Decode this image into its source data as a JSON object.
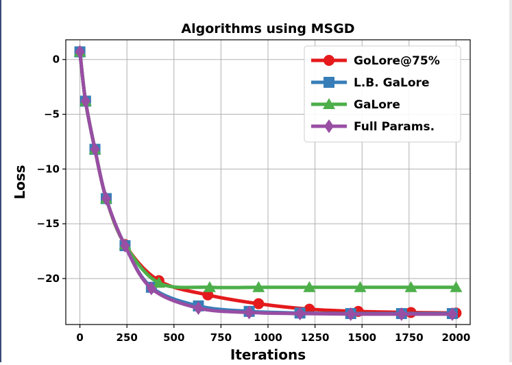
{
  "chart_data": {
    "type": "line",
    "title": "Algorithms using MSGD",
    "xlabel": "Iterations",
    "ylabel": "Loss",
    "xlim": [
      -75,
      2075
    ],
    "ylim": [
      -24.2,
      1.8
    ],
    "xticks": [
      0,
      250,
      500,
      750,
      1000,
      1250,
      1500,
      1750,
      2000
    ],
    "yticks": [
      0,
      -5,
      -10,
      -15,
      -20
    ],
    "xtick_labels": [
      "0",
      "250",
      "500",
      "750",
      "1000",
      "1250",
      "1500",
      "1750",
      "2000"
    ],
    "ytick_labels": [
      "0",
      "−5",
      "−10",
      "−15",
      "−20"
    ],
    "grid": true,
    "legend_position": "top-right",
    "series": [
      {
        "name": "GoLore@75%",
        "color": "#e41a1c",
        "marker": "circle",
        "x": [
          0,
          30,
          80,
          140,
          240,
          420,
          680,
          950,
          1220,
          1480,
          1760,
          2000
        ],
        "y": [
          0.7,
          -3.8,
          -8.2,
          -12.7,
          -16.9,
          -20.2,
          -21.5,
          -22.3,
          -22.8,
          -23.0,
          -23.1,
          -23.15
        ]
      },
      {
        "name": "L.B. GaLore",
        "color": "#377eb8",
        "marker": "square",
        "x": [
          0,
          30,
          80,
          140,
          240,
          380,
          630,
          900,
          1170,
          1440,
          1710,
          1980
        ],
        "y": [
          0.7,
          -3.8,
          -8.2,
          -12.7,
          -17.0,
          -20.8,
          -22.5,
          -23.0,
          -23.15,
          -23.2,
          -23.2,
          -23.2
        ]
      },
      {
        "name": "GaLore",
        "color": "#4daf4a",
        "marker": "triangle",
        "x": [
          0,
          30,
          80,
          140,
          240,
          420,
          690,
          950,
          1220,
          1490,
          1760,
          2000
        ],
        "y": [
          0.7,
          -3.8,
          -8.2,
          -12.7,
          -16.9,
          -20.4,
          -20.8,
          -20.8,
          -20.8,
          -20.8,
          -20.8,
          -20.8
        ]
      },
      {
        "name": "Full Params.",
        "color": "#984ea3",
        "marker": "diamond",
        "x": [
          0,
          30,
          80,
          140,
          240,
          380,
          630,
          900,
          1170,
          1440,
          1710,
          1980
        ],
        "y": [
          0.7,
          -3.8,
          -8.2,
          -12.7,
          -17.0,
          -20.9,
          -22.7,
          -23.1,
          -23.2,
          -23.25,
          -23.25,
          -23.25
        ]
      }
    ]
  }
}
